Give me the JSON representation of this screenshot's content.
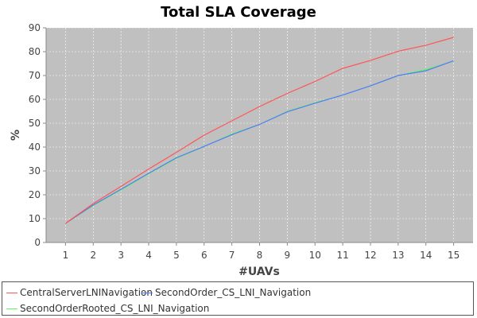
{
  "chart_data": {
    "type": "line",
    "title": "Total SLA Coverage",
    "xlabel": "#UAVs",
    "ylabel": "%",
    "x": [
      1,
      2,
      3,
      4,
      5,
      6,
      7,
      8,
      9,
      10,
      11,
      12,
      13,
      14,
      15
    ],
    "xlim": [
      0.3,
      15.7
    ],
    "ylim": [
      0,
      90
    ],
    "yticks": [
      0,
      10,
      20,
      30,
      40,
      50,
      60,
      70,
      80,
      90
    ],
    "grid": true,
    "legend_position": "bottom",
    "plot_background": "#c0c0c0",
    "series": [
      {
        "name": "CentralServerLNINavigation",
        "color": "#ff5555",
        "values": [
          8,
          16.3,
          23.5,
          30.8,
          37.8,
          45,
          51,
          57,
          62.5,
          67.5,
          73,
          76.3,
          80.2,
          82.7,
          86
        ]
      },
      {
        "name": "SecondOrder_CS_LNI_Navigation",
        "color": "#5577ff",
        "values": [
          8,
          15.7,
          22.3,
          29,
          35.5,
          40.3,
          45.2,
          49.5,
          54.8,
          58.4,
          61.8,
          65.7,
          70,
          72,
          76.2
        ]
      },
      {
        "name": "SecondOrderRooted_CS_LNI_Navigation",
        "color": "#55ff55",
        "values": [
          8,
          15.5,
          22,
          28.8,
          35.3,
          40.2,
          45.5,
          49.5,
          55,
          58.6,
          61.8,
          65.7,
          70,
          72.5,
          76
        ]
      }
    ]
  }
}
